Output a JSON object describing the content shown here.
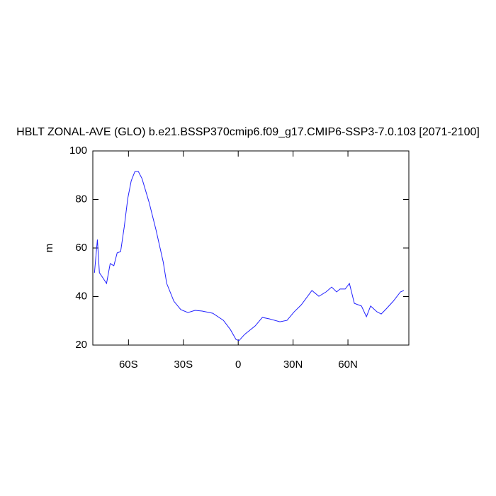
{
  "chart_data": {
    "type": "line",
    "title": "HBLT ZONAL-AVE (GLO) b.e21.BSSP370cmip6.f09_g17.CMIP6-SSP3-7.0.103 [2071-2100]",
    "y_label": "m",
    "x": [
      -78.6,
      -77.0,
      -75.9,
      -74.0,
      -72.0,
      -70.0,
      -68.0,
      -66.2,
      -64.3,
      -62.3,
      -60.4,
      -58.5,
      -56.5,
      -54.6,
      -52.6,
      -48.8,
      -44.9,
      -41.0,
      -39.1,
      -35.2,
      -31.4,
      -27.5,
      -23.6,
      -19.7,
      -13.9,
      -8.1,
      -4.3,
      -1.2,
      0.4,
      3.5,
      9.3,
      13.2,
      17.0,
      22.8,
      26.7,
      30.6,
      34.5,
      40.3,
      44.1,
      48.0,
      51.1,
      53.8,
      55.7,
      58.5,
      60.8,
      63.5,
      67.4,
      70.1,
      72.4,
      75.9,
      78.2,
      80.9,
      84.8,
      88.7,
      90.6
    ],
    "series": [
      {
        "name": "HBLT",
        "color": "#2020ff",
        "values": [
          49.8,
          63.5,
          49.8,
          47.7,
          45.4,
          53.6,
          52.7,
          58.0,
          58.5,
          68.8,
          80.4,
          87.7,
          91.5,
          91.5,
          88.6,
          79.0,
          67.3,
          54.2,
          45.4,
          38.1,
          34.6,
          33.4,
          34.3,
          34.0,
          33.1,
          30.2,
          26.4,
          22.3,
          21.8,
          24.4,
          27.9,
          31.4,
          30.8,
          29.6,
          30.2,
          33.7,
          36.6,
          42.5,
          40.1,
          41.9,
          43.9,
          41.9,
          43.1,
          43.1,
          45.4,
          37.2,
          36.1,
          31.7,
          36.1,
          33.7,
          32.8,
          34.9,
          38.1,
          41.9,
          42.5
        ]
      }
    ],
    "xlim": [
      -79.5,
      93.3
    ],
    "xticks": [
      {
        "value": -60,
        "label": "60S"
      },
      {
        "value": -30,
        "label": "30S"
      },
      {
        "value": 0,
        "label": "0"
      },
      {
        "value": 30,
        "label": "30N"
      },
      {
        "value": 60,
        "label": "60N"
      }
    ],
    "ylim": [
      20,
      100
    ],
    "yticks": [
      20,
      40,
      60,
      80,
      100
    ]
  }
}
